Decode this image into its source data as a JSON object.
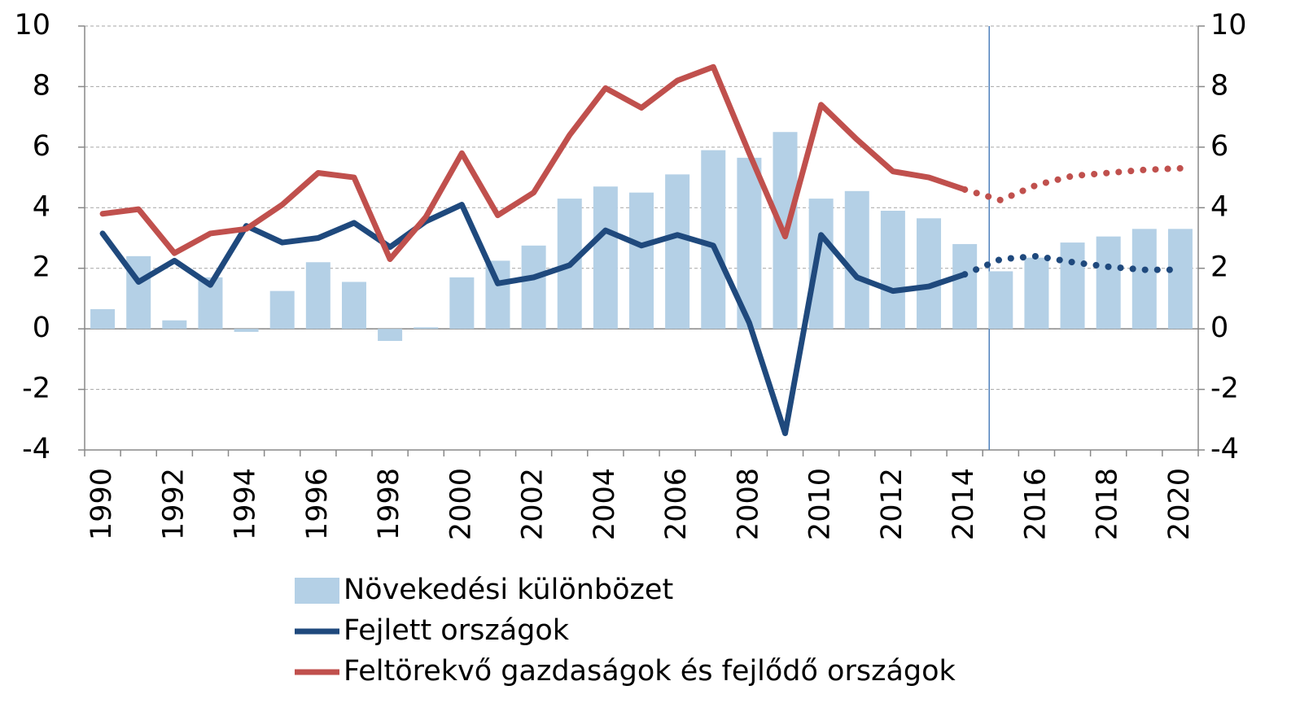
{
  "chart_data": {
    "type": "bar_line",
    "categories": [
      "1990",
      null,
      "1992",
      null,
      "1994",
      null,
      "1996",
      null,
      "1998",
      null,
      "2000",
      null,
      "2002",
      null,
      "2004",
      null,
      "2006",
      null,
      "2008",
      null,
      "2010",
      null,
      "2012",
      null,
      "2014",
      null,
      "2016",
      null,
      "2018",
      null,
      "2020"
    ],
    "series": [
      {
        "name": "Növekedési különbözet",
        "type": "bar",
        "color": "#b4d0e6",
        "values": [
          0.65,
          2.4,
          0.28,
          1.7,
          -0.1,
          1.25,
          2.2,
          1.55,
          -0.4,
          0.05,
          1.7,
          2.25,
          2.75,
          4.3,
          4.7,
          4.5,
          5.1,
          5.9,
          5.65,
          6.5,
          4.3,
          4.55,
          3.9,
          3.65,
          2.8,
          1.9,
          2.35,
          2.85,
          3.05,
          3.3,
          3.3
        ]
      },
      {
        "name": "Fejlett országok",
        "type": "line",
        "color": "#1f497d",
        "values": [
          3.15,
          1.55,
          2.25,
          1.45,
          3.4,
          2.85,
          3.0,
          3.5,
          2.7,
          3.55,
          4.1,
          1.5,
          1.7,
          2.1,
          3.25,
          2.75,
          3.1,
          2.75,
          0.2,
          -3.45,
          3.1,
          1.7,
          1.25,
          1.4,
          1.8,
          2.3,
          2.4,
          2.2,
          2.05,
          1.95,
          1.95
        ]
      },
      {
        "name": "Feltörekvő gazdaságok és fejlődő országok",
        "type": "line",
        "color": "#c0504d",
        "values": [
          3.8,
          3.95,
          2.5,
          3.15,
          3.3,
          4.1,
          5.15,
          5.0,
          2.3,
          3.7,
          5.8,
          3.75,
          4.5,
          6.4,
          7.95,
          7.3,
          8.2,
          8.65,
          5.8,
          3.05,
          7.4,
          6.25,
          5.2,
          5.0,
          4.6,
          4.25,
          4.75,
          5.05,
          5.15,
          5.25,
          5.3
        ]
      }
    ],
    "forecast_from_index": 24,
    "ylim": [
      -4,
      10
    ],
    "yticks": [
      -4,
      -2,
      0,
      2,
      4,
      6,
      8,
      10
    ],
    "y2lim": [
      -4,
      10
    ],
    "y2ticks": [
      -4,
      -2,
      0,
      2,
      4,
      6,
      8,
      10
    ],
    "grid": true,
    "legend": "bottom"
  }
}
